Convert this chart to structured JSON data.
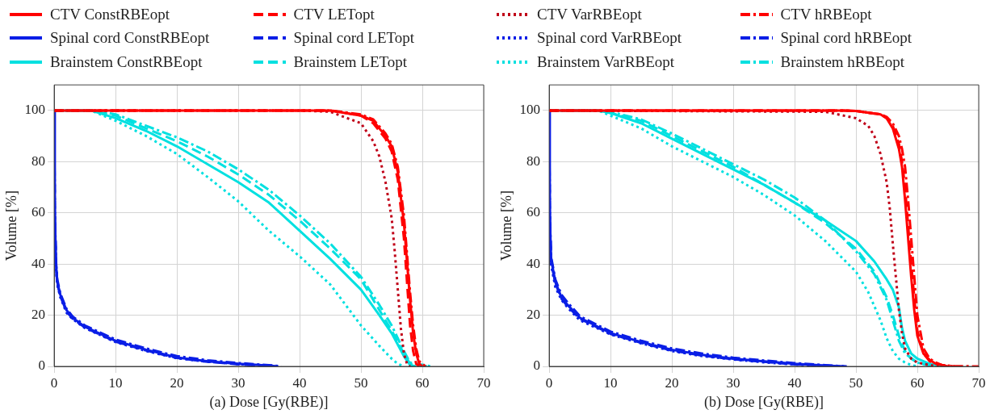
{
  "chart_data": [
    {
      "type": "line",
      "xlabel": "(a) Dose [Gy(RBE)]",
      "ylabel": "Volume [%]",
      "xlim": [
        0,
        70
      ],
      "xticks": [
        0,
        10,
        20,
        30,
        40,
        50,
        60,
        70
      ],
      "ylim": [
        0,
        110
      ],
      "yticks": [
        0,
        20,
        40,
        60,
        80,
        100
      ],
      "grid": true,
      "legend": "top",
      "marker": "none",
      "series": [
        {
          "name": "CTV ConstRBEopt",
          "color": "#ff0000",
          "line_style": "solid",
          "x": [
            0,
            45,
            50,
            52,
            54,
            55,
            56,
            57,
            57.5,
            58,
            58.5,
            59,
            59.5,
            60
          ],
          "values": [
            100,
            100,
            98,
            96,
            90,
            86,
            76,
            56,
            41,
            26,
            13,
            5,
            1,
            0
          ]
        },
        {
          "name": "CTV LETopt",
          "color": "#ff0000",
          "line_style": "dashed",
          "x": [
            0,
            45,
            50,
            52,
            54,
            55,
            56,
            57,
            57.5,
            58,
            58.5,
            59,
            59.5
          ],
          "values": [
            100,
            100,
            98,
            95,
            89,
            84,
            73,
            50,
            33,
            16,
            6,
            1,
            0
          ]
        },
        {
          "name": "CTV VarRBEopt",
          "color": "#c00018",
          "line_style": "dotted",
          "x": [
            0,
            40,
            45,
            50,
            52,
            53,
            54,
            55,
            55.5,
            56,
            56.5,
            57,
            57.5,
            58
          ],
          "values": [
            100,
            100,
            99.5,
            95,
            88,
            82,
            72,
            58,
            45,
            30,
            15,
            5,
            1,
            0
          ]
        },
        {
          "name": "CTV hRBEopt",
          "color": "#ff0000",
          "line_style": "dashdot",
          "x": [
            0,
            45,
            50,
            52,
            54,
            55,
            56,
            57,
            57.5,
            58,
            58.5,
            59,
            59.5,
            60.5
          ],
          "values": [
            100,
            100,
            98.5,
            96.5,
            91,
            87,
            78,
            59,
            44,
            29,
            16,
            7,
            2,
            0
          ]
        },
        {
          "name": "Spinal cord ConstRBEopt",
          "color": "#0a1ee6",
          "line_style": "solid",
          "x": [
            0,
            0.1,
            0.3,
            0.5,
            1,
            2,
            3,
            5,
            10,
            15,
            20,
            25,
            30,
            35,
            36.5
          ],
          "values": [
            100,
            60,
            40,
            33,
            28,
            22,
            19,
            15.5,
            10,
            6.5,
            3.5,
            2,
            1,
            0.3,
            0
          ]
        },
        {
          "name": "Spinal cord LETopt",
          "color": "#0a1ee6",
          "line_style": "dashed",
          "x": [
            0,
            0.1,
            0.3,
            0.5,
            1,
            2,
            3,
            5,
            10,
            15,
            20,
            25,
            30,
            35.5
          ],
          "values": [
            100,
            59,
            39,
            32.5,
            27.5,
            21.5,
            18.7,
            15.2,
            9.7,
            6.2,
            3.3,
            1.8,
            0.8,
            0
          ]
        },
        {
          "name": "Spinal cord VarRBEopt",
          "color": "#0a1ee6",
          "line_style": "dotted",
          "x": [
            0,
            0.1,
            0.3,
            0.5,
            1,
            2,
            3,
            5,
            10,
            15,
            20,
            25,
            30,
            36
          ],
          "values": [
            100,
            58,
            38,
            32,
            27,
            21,
            18.5,
            15,
            9.5,
            6,
            3.2,
            1.8,
            0.9,
            0
          ]
        },
        {
          "name": "Spinal cord hRBEopt",
          "color": "#0a1ee6",
          "line_style": "dashdot",
          "x": [
            0,
            0.1,
            0.3,
            0.5,
            1,
            2,
            3,
            5,
            10,
            15,
            20,
            25,
            30,
            35,
            37
          ],
          "values": [
            100,
            61,
            41,
            34,
            28.5,
            22.5,
            19.5,
            16,
            10.5,
            7,
            4,
            2.4,
            1.3,
            0.5,
            0
          ]
        },
        {
          "name": "Brainstem ConstRBEopt",
          "color": "#00e0e0",
          "line_style": "solid",
          "x": [
            0,
            6,
            10,
            15,
            20,
            25,
            30,
            35,
            40,
            45,
            50,
            53,
            55,
            57,
            58,
            59
          ],
          "values": [
            100,
            100,
            97,
            92,
            86,
            79,
            72,
            64,
            53,
            42,
            30,
            20,
            13,
            4,
            0.5,
            0
          ]
        },
        {
          "name": "Brainstem LETopt",
          "color": "#00e0e0",
          "line_style": "dashed",
          "x": [
            0,
            6,
            10,
            15,
            20,
            25,
            30,
            35,
            40,
            45,
            50,
            53,
            55,
            57,
            58,
            61
          ],
          "values": [
            100,
            100,
            98,
            93,
            88,
            82,
            75,
            67,
            57,
            46,
            34,
            22,
            14,
            5,
            1,
            0
          ]
        },
        {
          "name": "Brainstem VarRBEopt",
          "color": "#00e0e0",
          "line_style": "dotted",
          "x": [
            0,
            6,
            10,
            15,
            20,
            25,
            30,
            35,
            40,
            45,
            50,
            53,
            55,
            56,
            57
          ],
          "values": [
            100,
            100,
            96,
            90,
            83,
            74,
            64.5,
            53,
            43,
            32,
            16,
            8,
            3,
            1,
            0
          ]
        },
        {
          "name": "Brainstem hRBEopt",
          "color": "#00e0e0",
          "line_style": "dashdot",
          "x": [
            0,
            6,
            10,
            15,
            20,
            25,
            30,
            35,
            40,
            45,
            50,
            53,
            55,
            57,
            58,
            61.5
          ],
          "values": [
            100,
            100,
            98.5,
            94,
            89.5,
            84,
            77,
            69,
            59,
            48,
            35,
            24,
            16,
            6,
            1.5,
            0
          ]
        }
      ]
    },
    {
      "type": "line",
      "xlabel": "(b) Dose [Gy(RBE)]",
      "ylabel": "Volume [%]",
      "xlim": [
        0,
        70
      ],
      "xticks": [
        0,
        10,
        20,
        30,
        40,
        50,
        60,
        70
      ],
      "ylim": [
        0,
        110
      ],
      "yticks": [
        0,
        20,
        40,
        60,
        80,
        100
      ],
      "grid": true,
      "marker": "none",
      "series": [
        {
          "color": "#ff0000",
          "line_style": "solid",
          "x": [
            0,
            48,
            50,
            54,
            55,
            56,
            57,
            57.5,
            58,
            58.5,
            59,
            59.5,
            60,
            61,
            62,
            63,
            65
          ],
          "values": [
            100,
            100,
            99.8,
            98.5,
            97,
            93,
            85,
            78,
            65,
            50,
            35,
            22,
            12,
            5,
            2.5,
            1,
            0
          ]
        },
        {
          "color": "#ff0000",
          "line_style": "dashed",
          "x": [
            0,
            48,
            50,
            54,
            55,
            56,
            57,
            57.5,
            58,
            58.5,
            59,
            60,
            61,
            62,
            64,
            66
          ],
          "values": [
            100,
            100,
            99.8,
            98.5,
            97,
            94,
            87,
            80,
            70,
            55,
            40,
            14,
            5,
            2,
            0.5,
            0
          ]
        },
        {
          "color": "#c00018",
          "line_style": "dotted",
          "x": [
            0,
            45,
            50,
            52,
            53,
            54,
            55,
            55.5,
            56,
            56.5,
            57,
            57.5,
            58,
            59,
            60,
            62,
            63.5
          ],
          "values": [
            100,
            99.5,
            97,
            94,
            90,
            83,
            72,
            62,
            48,
            35,
            22,
            13,
            7,
            3,
            1.5,
            0.5,
            0
          ]
        },
        {
          "color": "#ff0000",
          "line_style": "dashdot",
          "x": [
            0,
            48,
            50,
            54,
            55,
            56,
            57,
            57.5,
            58,
            58.5,
            59,
            60,
            61,
            62,
            63,
            64,
            66,
            70
          ],
          "values": [
            100,
            100,
            99.8,
            98.5,
            97.5,
            95,
            90,
            85,
            78,
            65,
            50,
            20,
            7,
            3,
            1.5,
            0.5,
            0.1,
            0
          ]
        },
        {
          "color": "#0a1ee6",
          "line_style": "solid",
          "x": [
            0,
            0.1,
            0.3,
            1,
            2,
            3,
            5,
            10,
            15,
            20,
            25,
            30,
            35,
            40,
            45,
            48
          ],
          "values": [
            100,
            60,
            42,
            33,
            27,
            24,
            19,
            13,
            9.5,
            6.5,
            4.5,
            3,
            2,
            1,
            0.3,
            0
          ]
        },
        {
          "color": "#0a1ee6",
          "line_style": "dashed",
          "x": [
            0,
            0.1,
            0.3,
            1,
            2,
            3,
            5,
            10,
            15,
            20,
            25,
            30,
            35,
            40,
            47.5
          ],
          "values": [
            100,
            59,
            41,
            32.5,
            26.5,
            23.5,
            18.6,
            12.7,
            9.2,
            6.2,
            4.2,
            2.8,
            1.8,
            0.8,
            0
          ]
        },
        {
          "color": "#0a1ee6",
          "line_style": "dotted",
          "x": [
            0,
            0.1,
            0.3,
            1,
            2,
            3,
            5,
            10,
            15,
            20,
            25,
            30,
            35,
            40,
            47
          ],
          "values": [
            100,
            58,
            40,
            31,
            26,
            23,
            18,
            12.5,
            9,
            6,
            4,
            2.7,
            1.6,
            0.7,
            0
          ]
        },
        {
          "color": "#0a1ee6",
          "line_style": "dashdot",
          "x": [
            0,
            0.1,
            0.3,
            1,
            2,
            3,
            5,
            10,
            15,
            20,
            25,
            30,
            35,
            40,
            45,
            48.5
          ],
          "values": [
            100,
            61,
            43,
            34,
            28,
            25,
            19.6,
            13.6,
            10,
            7,
            5,
            3.4,
            2.3,
            1.3,
            0.5,
            0
          ]
        },
        {
          "color": "#00e0e0",
          "line_style": "solid",
          "x": [
            0,
            8,
            10,
            15,
            20,
            25,
            30,
            35,
            40,
            45,
            50,
            53,
            55,
            56,
            57,
            57.5,
            58,
            59,
            60,
            62,
            64
          ],
          "values": [
            100,
            100,
            99,
            95,
            89,
            83,
            77,
            71,
            64,
            57,
            49,
            41,
            34,
            30,
            23,
            15,
            10,
            5,
            3,
            1,
            0
          ]
        },
        {
          "color": "#00e0e0",
          "line_style": "dashed",
          "x": [
            0,
            8,
            10,
            15,
            20,
            25,
            30,
            35,
            40,
            45,
            50,
            53,
            55,
            56,
            57,
            58,
            59,
            60,
            62,
            63
          ],
          "values": [
            100,
            100,
            99,
            96,
            90,
            84,
            78,
            71,
            64,
            56,
            46,
            37,
            27,
            20,
            12,
            6,
            3,
            1.5,
            0.5,
            0
          ]
        },
        {
          "color": "#00e0e0",
          "line_style": "dotted",
          "x": [
            0,
            8,
            10,
            15,
            20,
            25,
            30,
            35,
            40,
            45,
            50,
            52,
            54,
            55,
            56,
            57,
            58,
            59,
            60
          ],
          "values": [
            100,
            100,
            98,
            93,
            86,
            80,
            74,
            67,
            59,
            49,
            37,
            29,
            18,
            11,
            6,
            3,
            1.5,
            0.5,
            0
          ]
        },
        {
          "color": "#00e0e0",
          "line_style": "dashdot",
          "x": [
            0,
            8,
            10,
            15,
            20,
            25,
            30,
            35,
            40,
            45,
            50,
            53,
            55,
            56,
            57,
            58,
            60,
            62.6
          ],
          "values": [
            100,
            100,
            99.5,
            96.5,
            91,
            85,
            79,
            73,
            66,
            57,
            45,
            36,
            26,
            18,
            10,
            5,
            1.5,
            0
          ]
        }
      ]
    }
  ]
}
